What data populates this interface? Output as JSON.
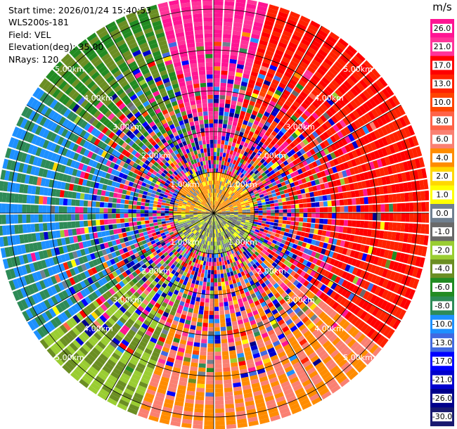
{
  "header": {
    "start_time": "Start time: 2026/01/24 15:40:53",
    "instrument": "WLS200s-181",
    "field": "Field: VEL",
    "elevation": "Elevation(deg): 35.00",
    "nrays": "NRays: 120"
  },
  "chart_data": {
    "type": "heatmap",
    "projection": "polar-ppi",
    "field": "VEL",
    "units": "m/s",
    "nrays": 120,
    "range_rings_km": [
      1,
      2,
      3,
      4,
      5
    ],
    "range_ring_labels": [
      "1.00km",
      "2.00km",
      "3.00km",
      "4.00km",
      "5.00km"
    ],
    "max_range_km": 5.3,
    "dominant_sectors": [
      {
        "azimuth_deg_from": 15,
        "azimuth_deg_to": 130,
        "velocity_ms": 13.0
      },
      {
        "azimuth_deg_from": 130,
        "azimuth_deg_to": 200,
        "velocity_ms": 4.0
      },
      {
        "azimuth_deg_from": 200,
        "azimuth_deg_to": 235,
        "velocity_ms": -4.0
      },
      {
        "azimuth_deg_from": 235,
        "azimuth_deg_to": 305,
        "velocity_ms": -10.0
      },
      {
        "azimuth_deg_from": 305,
        "azimuth_deg_to": 345,
        "velocity_ms": -6.0
      },
      {
        "azimuth_deg_from": 345,
        "azimuth_deg_to": 375,
        "velocity_ms": 21.0
      }
    ],
    "colorbar": {
      "title": "m/s",
      "boundaries": [
        26.0,
        21.0,
        17.0,
        13.0,
        10.0,
        8.0,
        6.0,
        4.0,
        2.0,
        1.0,
        0.0,
        -1.0,
        -2.0,
        -4.0,
        -6.0,
        -8.0,
        -10.0,
        -13.0,
        -17.0,
        -21.0,
        -26.0,
        -30.0
      ],
      "labels": [
        "26.0",
        "21.0",
        "17.0",
        "13.0",
        "10.0",
        "8.0",
        "6.0",
        "4.0",
        "2.0",
        "1.0",
        "0.0",
        "-1.0",
        "-2.0",
        "-4.0",
        "-6.0",
        "-8.0",
        "-10.0",
        "-13.0",
        "-17.0",
        "-21.0",
        "-26.0",
        "-30.0"
      ],
      "colors": [
        "#ff1493",
        "#ff3399",
        "#ff0000",
        "#ff2200",
        "#ff4500",
        "#ff6347",
        "#fa8072",
        "#ff8c00",
        "#ffd700",
        "#ffff00",
        "#708090",
        "#696969",
        "#9acd32",
        "#6b8e23",
        "#228b22",
        "#2e8b57",
        "#1e90ff",
        "#4169e1",
        "#0000ff",
        "#0000cd",
        "#00008b",
        "#191970"
      ]
    }
  }
}
